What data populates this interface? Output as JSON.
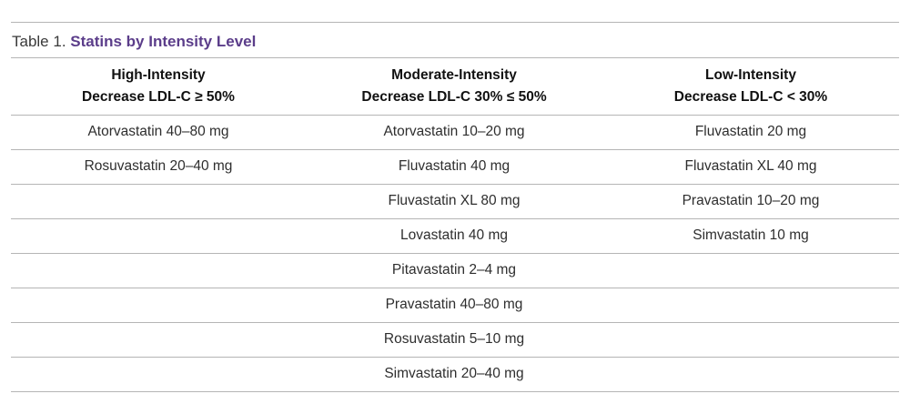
{
  "caption": {
    "prefix": "Table 1. ",
    "title": "Statins by Intensity Level"
  },
  "columns": [
    {
      "name": "High-Intensity",
      "criterion": "Decrease LDL-C ≥ 50%"
    },
    {
      "name": "Moderate-Intensity",
      "criterion": "Decrease LDL-C 30% ≤ 50%"
    },
    {
      "name": "Low-Intensity",
      "criterion": "Decrease LDL-C < 30%"
    }
  ],
  "rows": [
    [
      "Atorvastatin 40–80 mg",
      "Atorvastatin 10–20 mg",
      "Fluvastatin 20 mg"
    ],
    [
      "Rosuvastatin 20–40 mg",
      "Fluvastatin 40 mg",
      "Fluvastatin XL 40 mg"
    ],
    [
      "",
      "Fluvastatin XL 80 mg",
      "Pravastatin 10–20 mg"
    ],
    [
      "",
      "Lovastatin 40 mg",
      "Simvastatin 10 mg"
    ],
    [
      "",
      "Pitavastatin 2–4 mg",
      ""
    ],
    [
      "",
      "Pravastatin 40–80 mg",
      ""
    ],
    [
      "",
      "Rosuvastatin 5–10 mg",
      ""
    ],
    [
      "",
      "Simvastatin 20–40 mg",
      ""
    ]
  ]
}
